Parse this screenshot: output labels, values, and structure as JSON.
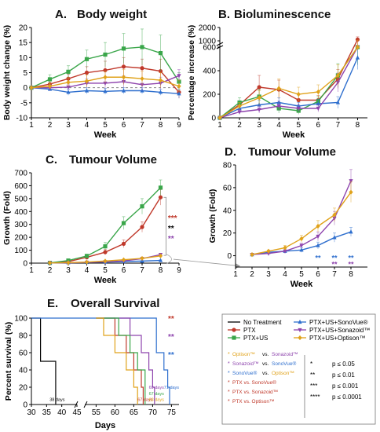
{
  "colors": {
    "no_treatment": "#000000",
    "ptx": "#c0392b",
    "ptx_us": "#3aa64a",
    "sonovue": "#2f6fce",
    "sonazoid": "#8e44ad",
    "optison": "#e0a21a"
  },
  "chart_data": [
    {
      "id": "A",
      "type": "line",
      "panel_label": "A.",
      "title": "Body weight",
      "xlabel": "Week",
      "ylabel": "Body weight change (%)",
      "xlim": [
        1,
        9
      ],
      "ylim": [
        -10,
        20
      ],
      "xticks": [
        1,
        2,
        3,
        4,
        5,
        6,
        7,
        8,
        9
      ],
      "yticks": [
        -10,
        -5,
        0,
        5,
        10,
        15,
        20
      ],
      "x": [
        1,
        2,
        3,
        4,
        5,
        6,
        7,
        8,
        9
      ],
      "series": [
        {
          "key": "ptx",
          "values": [
            0,
            1.2,
            3,
            5,
            5.8,
            7,
            6.5,
            5.5,
            -1.5
          ],
          "err": [
            0,
            1,
            1.5,
            2,
            3,
            3,
            3,
            4,
            2
          ]
        },
        {
          "key": "ptx_us",
          "values": [
            0,
            2.8,
            5.3,
            9.5,
            11,
            13,
            13.5,
            11.5,
            2
          ],
          "err": [
            0,
            1.5,
            2,
            3,
            4,
            5,
            6,
            6,
            3
          ]
        },
        {
          "key": "sonovue",
          "values": [
            0,
            -0.5,
            -1.5,
            -1,
            -1.2,
            -1,
            -1,
            -1.5,
            -2
          ],
          "err": [
            0,
            0.5,
            1,
            1,
            1,
            1,
            1,
            1,
            1.5
          ]
        },
        {
          "key": "sonazoid",
          "values": [
            0,
            0,
            0.2,
            1.5,
            1.5,
            2,
            1,
            1.5,
            4
          ],
          "err": [
            0,
            1,
            1,
            1.5,
            2,
            2,
            2,
            2,
            2
          ]
        },
        {
          "key": "optison",
          "values": [
            0,
            0.5,
            1.8,
            2.2,
            3.5,
            3.5,
            3,
            2.5,
            0.5
          ],
          "err": [
            0,
            1,
            1.5,
            2,
            2,
            2.5,
            2.5,
            2.5,
            2
          ]
        }
      ]
    },
    {
      "id": "B",
      "type": "line",
      "panel_label": "B.",
      "title": "Bioluminescence",
      "xlabel": "Week",
      "ylabel": "Percentage increase (%)",
      "xlim": [
        1,
        8.5
      ],
      "ylim": [
        0,
        2000
      ],
      "ybreak": [
        600,
        1000
      ],
      "xticks": [
        1,
        2,
        3,
        4,
        5,
        6,
        7,
        8
      ],
      "yticks": [
        0,
        200,
        400,
        600,
        1000,
        2000
      ],
      "x": [
        1,
        2,
        3,
        4,
        5,
        6,
        7,
        8
      ],
      "series": [
        {
          "key": "ptx",
          "values": [
            0,
            110,
            260,
            240,
            150,
            150,
            330,
            1100
          ],
          "err": [
            0,
            30,
            100,
            80,
            50,
            40,
            80,
            200
          ]
        },
        {
          "key": "ptx_us",
          "values": [
            0,
            130,
            180,
            80,
            60,
            140,
            360,
            600
          ],
          "err": [
            0,
            40,
            60,
            40,
            30,
            40,
            100,
            150
          ]
        },
        {
          "key": "sonovue",
          "values": [
            0,
            80,
            110,
            130,
            100,
            120,
            130,
            510
          ],
          "err": [
            0,
            30,
            40,
            40,
            30,
            40,
            50,
            100
          ]
        },
        {
          "key": "sonazoid",
          "values": [
            0,
            50,
            70,
            100,
            80,
            80,
            300,
            800
          ],
          "err": [
            0,
            20,
            30,
            40,
            30,
            30,
            80,
            150
          ]
        },
        {
          "key": "optison",
          "values": [
            0,
            100,
            170,
            250,
            200,
            220,
            360,
            900
          ],
          "err": [
            0,
            30,
            60,
            80,
            60,
            60,
            90,
            150
          ]
        }
      ]
    },
    {
      "id": "C",
      "type": "line",
      "panel_label": "C.",
      "title": "Tumour Volume",
      "xlabel": "Week",
      "ylabel": "Growth (Fold)",
      "xlim": [
        1,
        9
      ],
      "ylim": [
        0,
        700
      ],
      "xticks": [
        1,
        2,
        3,
        4,
        5,
        6,
        7,
        8,
        9
      ],
      "yticks": [
        0,
        100,
        200,
        300,
        400,
        500,
        600,
        700
      ],
      "x": [
        2,
        3,
        4,
        5,
        6,
        7,
        8
      ],
      "series": [
        {
          "key": "ptx",
          "values": [
            2,
            12,
            45,
            85,
            150,
            280,
            510
          ],
          "err": [
            1,
            4,
            10,
            20,
            30,
            40,
            60
          ]
        },
        {
          "key": "ptx_us",
          "values": [
            2,
            20,
            55,
            130,
            310,
            440,
            585
          ],
          "err": [
            1,
            5,
            15,
            30,
            50,
            60,
            60
          ]
        },
        {
          "key": "sonovue",
          "values": [
            1,
            4,
            6,
            8,
            12,
            16,
            21
          ],
          "err": [
            0.5,
            1,
            2,
            2,
            3,
            4,
            4
          ]
        },
        {
          "key": "sonazoid",
          "values": [
            1,
            3,
            6,
            10,
            17,
            35,
            66
          ],
          "err": [
            0.5,
            1,
            2,
            2,
            4,
            6,
            10
          ]
        },
        {
          "key": "optison",
          "values": [
            1,
            4,
            8,
            16,
            26,
            37,
            56
          ],
          "err": [
            0.5,
            1,
            2,
            3,
            5,
            6,
            9
          ]
        }
      ],
      "sig": [
        {
          "text": "***",
          "color": "ptx"
        },
        {
          "text": "**",
          "color": "no_treatment"
        },
        {
          "text": "**",
          "color": "sonazoid"
        }
      ]
    },
    {
      "id": "D",
      "type": "line",
      "panel_label": "D.",
      "title": "Tumour Volume",
      "xlabel": "Week",
      "ylabel": "Growth (Fold)",
      "xlim": [
        1,
        9
      ],
      "ylim": [
        -10,
        80
      ],
      "xticks": [
        1,
        2,
        3,
        4,
        5,
        6,
        7,
        8
      ],
      "yticks": [
        0,
        20,
        40,
        60,
        80
      ],
      "x": [
        2,
        3,
        4,
        5,
        6,
        7,
        8
      ],
      "series": [
        {
          "key": "sonovue",
          "values": [
            1,
            3,
            4,
            5,
            9,
            16,
            21
          ],
          "err": [
            0.5,
            1,
            1,
            2,
            3,
            4,
            4
          ]
        },
        {
          "key": "sonazoid",
          "values": [
            1,
            2,
            4,
            9,
            17,
            33,
            66
          ],
          "err": [
            0.5,
            1,
            1,
            2,
            4,
            6,
            10
          ]
        },
        {
          "key": "optison",
          "values": [
            1,
            4,
            7,
            15,
            26,
            36,
            56
          ],
          "err": [
            0.5,
            1,
            2,
            3,
            5,
            6,
            9
          ]
        }
      ],
      "sig": [
        {
          "x": 6,
          "text": "**",
          "color": "sonovue"
        },
        {
          "x": 7,
          "text": "**",
          "color": "sonovue"
        },
        {
          "x": 7,
          "text": "**",
          "color": "sonazoid"
        },
        {
          "x": 8,
          "text": "**",
          "color": "sonovue"
        },
        {
          "x": 8,
          "text": "**",
          "color": "sonazoid"
        }
      ]
    },
    {
      "id": "E",
      "type": "line",
      "panel_label": "E.",
      "title": "Overall Survival",
      "xlabel": "Days",
      "ylabel": "Percent survival (%)",
      "xticks": [
        30,
        35,
        40,
        45,
        55,
        60,
        65,
        70,
        75
      ],
      "yticks": [
        0,
        20,
        40,
        60,
        80,
        100
      ],
      "ylim": [
        0,
        100
      ],
      "series": [
        {
          "key": "no_treatment",
          "steps": [
            [
              30,
              100
            ],
            [
              33,
              100
            ],
            [
              33,
              50
            ],
            [
              38,
              50
            ],
            [
              38,
              0
            ]
          ]
        },
        {
          "key": "ptx",
          "steps": [
            [
              55,
              100
            ],
            [
              60,
              100
            ],
            [
              60,
              80
            ],
            [
              63,
              80
            ],
            [
              63,
              60
            ],
            [
              65,
              60
            ],
            [
              65,
              40
            ],
            [
              67,
              40
            ],
            [
              67,
              20
            ],
            [
              67.5,
              20
            ],
            [
              67.5,
              0
            ]
          ]
        },
        {
          "key": "sonovue",
          "steps": [
            [
              30,
              100
            ],
            [
              43,
              100
            ],
            [
              43,
              100
            ],
            [
              55,
              100
            ],
            [
              71,
              100
            ],
            [
              71,
              60
            ],
            [
              73,
              60
            ],
            [
              73,
              40
            ],
            [
              74,
              40
            ],
            [
              74,
              20
            ],
            [
              74.5,
              20
            ],
            [
              74.5,
              0
            ]
          ]
        },
        {
          "key": "sonazoid",
          "steps": [
            [
              55,
              100
            ],
            [
              64,
              100
            ],
            [
              64,
              80
            ],
            [
              67,
              80
            ],
            [
              67,
              60
            ],
            [
              69,
              60
            ],
            [
              69,
              40
            ],
            [
              70,
              40
            ],
            [
              70,
              20
            ],
            [
              70.5,
              20
            ],
            [
              70.5,
              0
            ]
          ]
        },
        {
          "key": "ptx_us",
          "steps": [
            [
              55,
              100
            ],
            [
              61,
              100
            ],
            [
              61,
              80
            ],
            [
              64,
              80
            ],
            [
              64,
              60
            ],
            [
              66,
              60
            ],
            [
              66,
              40
            ],
            [
              68,
              40
            ],
            [
              68,
              0
            ]
          ]
        },
        {
          "key": "optison",
          "steps": [
            [
              55,
              100
            ],
            [
              57,
              100
            ],
            [
              57,
              80
            ],
            [
              60,
              80
            ],
            [
              60,
              60
            ],
            [
              63,
              60
            ],
            [
              63,
              40
            ],
            [
              65,
              40
            ],
            [
              65,
              20
            ],
            [
              66,
              20
            ],
            [
              66,
              0
            ]
          ]
        }
      ],
      "labels": [
        {
          "text": "38 days",
          "color": "no_treatment",
          "x": 36,
          "y": 4
        },
        {
          "text": "67 days",
          "color": "ptx",
          "x": 66,
          "y": 4
        },
        {
          "text": "69 days",
          "color": "sonazoid",
          "x": 69,
          "y": 18
        },
        {
          "text": "67 days",
          "color": "ptx_us",
          "x": 69,
          "y": 11
        },
        {
          "text": "63 days",
          "color": "optison",
          "x": 69,
          "y": 4
        },
        {
          "text": "71 days",
          "color": "sonovue",
          "x": 73,
          "y": 18
        }
      ],
      "sig": [
        {
          "text": "**",
          "color": "ptx"
        },
        {
          "text": "**",
          "color": "sonazoid"
        },
        {
          "text": "**",
          "color": "sonovue"
        }
      ]
    }
  ],
  "legend": {
    "items": [
      {
        "key": "no_treatment",
        "label": "No Treatment",
        "marker": "none"
      },
      {
        "key": "ptx",
        "label": "PTX",
        "marker": "circle"
      },
      {
        "key": "ptx_us",
        "label": "PTX+US",
        "marker": "square"
      },
      {
        "key": "sonovue",
        "label": "PTX+US+SonoVue®",
        "marker": "triangle"
      },
      {
        "key": "sonazoid",
        "label": "PTX+US+Sonazoid™",
        "marker": "tri-down"
      },
      {
        "key": "optison",
        "label": "PTX+US+Optison™",
        "marker": "diamond"
      }
    ]
  },
  "comparisons": [
    {
      "star": "*",
      "a": "Optison™",
      "a_color": "optison",
      "b": "Sonazoid™",
      "b_color": "sonazoid"
    },
    {
      "star": "*",
      "a": "Sonazoid™",
      "a_color": "sonazoid",
      "b": "SonoVue®",
      "b_color": "sonovue"
    },
    {
      "star": "*",
      "a": "SonoVue®",
      "a_color": "sonovue",
      "b": "Optison™",
      "b_color": "optison"
    },
    {
      "star": "*",
      "a": "PTX vs. SonoVue®",
      "a_color": "ptx",
      "b": "",
      "b_color": "ptx"
    },
    {
      "star": "*",
      "a": "PTX vs. Sonazoid™",
      "a_color": "ptx",
      "b": "",
      "b_color": "ptx"
    },
    {
      "star": "*",
      "a": "PTX vs. Optison™",
      "a_color": "ptx",
      "b": "",
      "b_color": "ptx"
    }
  ],
  "vs": "vs.",
  "pvalues": [
    {
      "stars": "*",
      "text": "p ≤ 0.05"
    },
    {
      "stars": "**",
      "text": "p ≤ 0.01"
    },
    {
      "stars": "***",
      "text": "p ≤ 0.001"
    },
    {
      "stars": "****",
      "text": "p ≤ 0.0001"
    }
  ]
}
